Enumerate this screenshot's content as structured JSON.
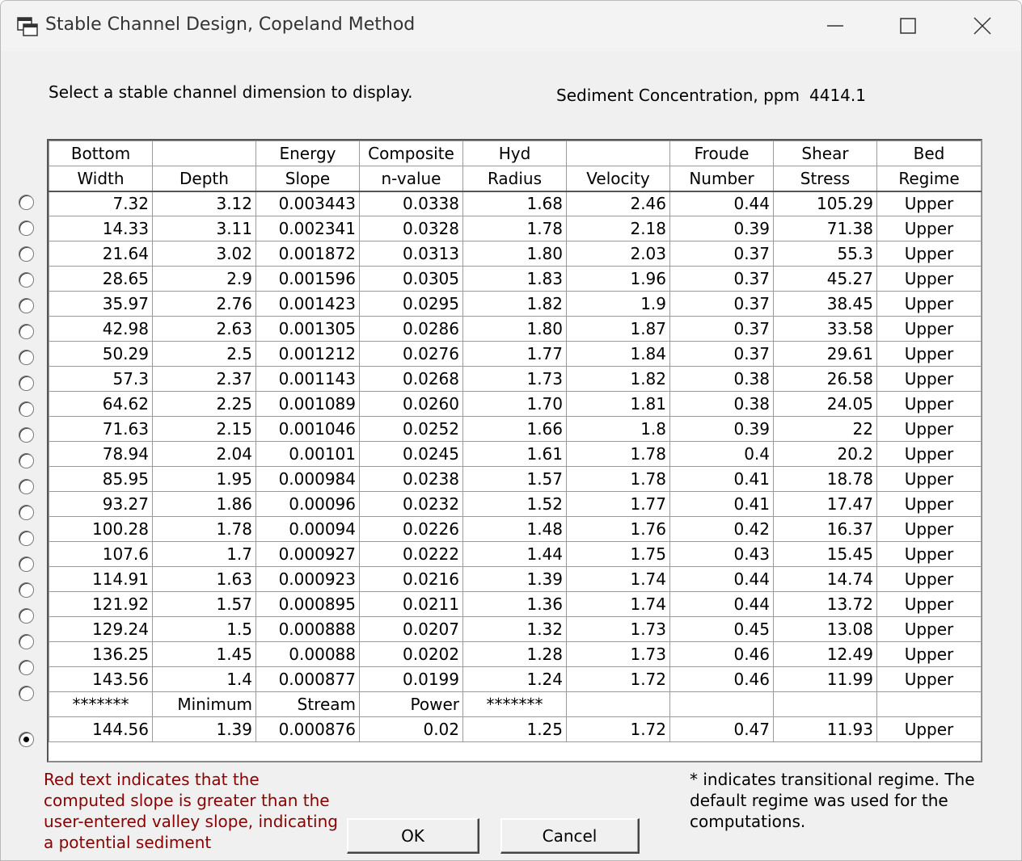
{
  "window": {
    "title": "Stable Channel Design, Copeland Method"
  },
  "prompt": "Select a stable channel dimension to display.",
  "concentration": {
    "label": "Sediment Concentration, ppm",
    "value": "4414.1"
  },
  "headers_top": [
    "Bottom",
    "",
    "Energy",
    "Composite",
    "Hyd",
    "",
    "Froude",
    "Shear",
    "Bed"
  ],
  "headers_bottom": [
    "Width",
    "Depth",
    "Slope",
    "n-value",
    "Radius",
    "Velocity",
    "Number",
    "Stress",
    "Regime"
  ],
  "rows": [
    [
      "7.32",
      "3.12",
      "0.003443",
      "0.0338",
      "1.68",
      "2.46",
      "0.44",
      "105.29",
      "Upper"
    ],
    [
      "14.33",
      "3.11",
      "0.002341",
      "0.0328",
      "1.78",
      "2.18",
      "0.39",
      "71.38",
      "Upper"
    ],
    [
      "21.64",
      "3.02",
      "0.001872",
      "0.0313",
      "1.80",
      "2.03",
      "0.37",
      "55.3",
      "Upper"
    ],
    [
      "28.65",
      "2.9",
      "0.001596",
      "0.0305",
      "1.83",
      "1.96",
      "0.37",
      "45.27",
      "Upper"
    ],
    [
      "35.97",
      "2.76",
      "0.001423",
      "0.0295",
      "1.82",
      "1.9",
      "0.37",
      "38.45",
      "Upper"
    ],
    [
      "42.98",
      "2.63",
      "0.001305",
      "0.0286",
      "1.80",
      "1.87",
      "0.37",
      "33.58",
      "Upper"
    ],
    [
      "50.29",
      "2.5",
      "0.001212",
      "0.0276",
      "1.77",
      "1.84",
      "0.37",
      "29.61",
      "Upper"
    ],
    [
      "57.3",
      "2.37",
      "0.001143",
      "0.0268",
      "1.73",
      "1.82",
      "0.38",
      "26.58",
      "Upper"
    ],
    [
      "64.62",
      "2.25",
      "0.001089",
      "0.0260",
      "1.70",
      "1.81",
      "0.38",
      "24.05",
      "Upper"
    ],
    [
      "71.63",
      "2.15",
      "0.001046",
      "0.0252",
      "1.66",
      "1.8",
      "0.39",
      "22",
      "Upper"
    ],
    [
      "78.94",
      "2.04",
      "0.00101",
      "0.0245",
      "1.61",
      "1.78",
      "0.4",
      "20.2",
      "Upper"
    ],
    [
      "85.95",
      "1.95",
      "0.000984",
      "0.0238",
      "1.57",
      "1.78",
      "0.41",
      "18.78",
      "Upper"
    ],
    [
      "93.27",
      "1.86",
      "0.00096",
      "0.0232",
      "1.52",
      "1.77",
      "0.41",
      "17.47",
      "Upper"
    ],
    [
      "100.28",
      "1.78",
      "0.00094",
      "0.0226",
      "1.48",
      "1.76",
      "0.42",
      "16.37",
      "Upper"
    ],
    [
      "107.6",
      "1.7",
      "0.000927",
      "0.0222",
      "1.44",
      "1.75",
      "0.43",
      "15.45",
      "Upper"
    ],
    [
      "114.91",
      "1.63",
      "0.000923",
      "0.0216",
      "1.39",
      "1.74",
      "0.44",
      "14.74",
      "Upper"
    ],
    [
      "121.92",
      "1.57",
      "0.000895",
      "0.0211",
      "1.36",
      "1.74",
      "0.44",
      "13.72",
      "Upper"
    ],
    [
      "129.24",
      "1.5",
      "0.000888",
      "0.0207",
      "1.32",
      "1.73",
      "0.45",
      "13.08",
      "Upper"
    ],
    [
      "136.25",
      "1.45",
      "0.00088",
      "0.0202",
      "1.28",
      "1.73",
      "0.46",
      "12.49",
      "Upper"
    ],
    [
      "143.56",
      "1.4",
      "0.000877",
      "0.0199",
      "1.24",
      "1.72",
      "0.46",
      "11.99",
      "Upper"
    ]
  ],
  "separator_row": [
    "*******",
    "Minimum",
    "Stream",
    "Power",
    "*******",
    "",
    "",
    "",
    ""
  ],
  "min_power_row": [
    "144.56",
    "1.39",
    "0.000876",
    "0.02",
    "1.25",
    "1.72",
    "0.47",
    "11.93",
    "Upper"
  ],
  "selected_index": 20,
  "note_red": "Red text indicates that the computed slope is greater than the user-entered valley slope, indicating a potential sediment",
  "note_right": "* indicates transitional regime. The default regime was used for the computations.",
  "buttons": {
    "ok": "OK",
    "cancel": "Cancel"
  },
  "icons": {
    "app": "app-window-icon",
    "minimize": "minimize-icon",
    "maximize": "maximize-icon",
    "close": "close-icon"
  }
}
